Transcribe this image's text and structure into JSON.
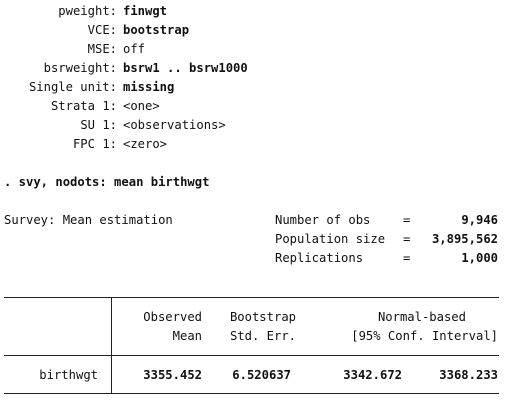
{
  "settings": [
    {
      "label": "pweight:",
      "value": "finwgt",
      "bold": true
    },
    {
      "label": "VCE:",
      "value": "bootstrap",
      "bold": true
    },
    {
      "label": "MSE:",
      "value": "off",
      "bold": false
    },
    {
      "label": "bsrweight:",
      "value": "bsrw1 .. bsrw1000",
      "bold": true
    },
    {
      "label": "Single unit:",
      "value": "missing",
      "bold": true
    },
    {
      "label": "Strata 1:",
      "value": "<one>",
      "bold": false
    },
    {
      "label": "SU 1:",
      "value": "<observations>",
      "bold": false
    },
    {
      "label": "FPC 1:",
      "value": "<zero>",
      "bold": false
    }
  ],
  "command": ". svy, nodots: mean birthwgt",
  "estimation_title": "Survey: Mean estimation",
  "summary": [
    {
      "label": "Number of obs",
      "eq": "=",
      "value": "9,946"
    },
    {
      "label": "Population size",
      "eq": "=",
      "value": "3,895,562"
    },
    {
      "label": "Replications",
      "eq": "=",
      "value": "1,000"
    }
  ],
  "table": {
    "header_row1": [
      "Observed",
      "Bootstrap",
      "Normal-based"
    ],
    "header_row2": [
      "Mean",
      "Std. Err.",
      "[95% Conf. Interval]"
    ],
    "row": {
      "name": "birthwgt",
      "mean": "3355.452",
      "se": "6.520637",
      "ci_low": "3342.672",
      "ci_high": "3368.233"
    }
  }
}
